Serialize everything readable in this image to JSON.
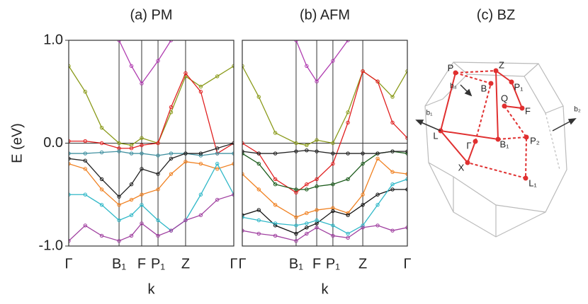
{
  "chart_data": [
    {
      "type": "line",
      "title": "(a) PM",
      "xlabel": "k",
      "ylabel": "E (eV)",
      "x": [
        0,
        0.1,
        0.2,
        0.305,
        0.38,
        0.442,
        0.541,
        0.62,
        0.708,
        0.8,
        0.9,
        1
      ],
      "xlim": [
        0,
        1
      ],
      "ylim": [
        -1,
        1
      ],
      "xticks": [
        {
          "value": 0,
          "label": "Γ"
        },
        {
          "value": 0.305,
          "label": "B₁"
        },
        {
          "value": 0.442,
          "label": "F"
        },
        {
          "value": 0.541,
          "label": "P₁"
        },
        {
          "value": 0.708,
          "label": "Z"
        },
        {
          "value": 1,
          "label": "Γ"
        }
      ],
      "yticks": [
        {
          "value": 1,
          "label": "1.0"
        },
        {
          "value": 0,
          "label": "0.0"
        },
        {
          "value": -1,
          "label": "-1.0"
        }
      ],
      "grid": true,
      "series": [
        {
          "color": "#b03cb0",
          "values": [
            null,
            null,
            null,
            1.0,
            0.75,
            0.58,
            0.8,
            1.0,
            null,
            null,
            null,
            null
          ]
        },
        {
          "color": "#8a9a1a",
          "values": [
            0.75,
            0.5,
            0.15,
            0.0,
            -0.02,
            0.05,
            0.0,
            0.3,
            0.65,
            0.55,
            0.65,
            0.75
          ]
        },
        {
          "color": "#e02020",
          "values": [
            0.02,
            0.02,
            0.0,
            -0.05,
            -0.05,
            -0.02,
            0.0,
            0.35,
            0.68,
            0.5,
            -0.1,
            0.0
          ]
        },
        {
          "color": "#4090a0",
          "values": [
            -0.1,
            -0.1,
            -0.09,
            -0.08,
            -0.1,
            -0.1,
            -0.12,
            -0.1,
            -0.1,
            -0.12,
            -0.1,
            -0.1
          ]
        },
        {
          "color": "#222222",
          "values": [
            -0.15,
            -0.17,
            -0.35,
            -0.52,
            -0.4,
            -0.25,
            -0.3,
            -0.15,
            -0.1,
            -0.1,
            -0.05,
            0.0
          ]
        },
        {
          "color": "#f08020",
          "values": [
            -0.2,
            -0.25,
            -0.45,
            -0.6,
            -0.55,
            -0.5,
            -0.45,
            -0.3,
            -0.18,
            -0.2,
            -0.25,
            -0.2
          ]
        },
        {
          "color": "#30b8c8",
          "values": [
            -0.5,
            -0.5,
            -0.6,
            -0.75,
            -0.7,
            -0.6,
            -0.75,
            -0.85,
            -0.75,
            -0.5,
            -0.2,
            -0.5
          ]
        },
        {
          "color": "#a040a0",
          "values": [
            -0.95,
            -0.8,
            -0.9,
            -0.95,
            -0.9,
            -0.78,
            -0.9,
            -0.85,
            -0.75,
            -0.7,
            -0.55,
            -0.5
          ]
        }
      ]
    },
    {
      "type": "line",
      "title": "(b) AFM",
      "xlabel": "k",
      "x": [
        0,
        0.1,
        0.2,
        0.326,
        0.39,
        0.451,
        0.549,
        0.64,
        0.73,
        0.82,
        0.91,
        1
      ],
      "xlim": [
        0,
        1
      ],
      "ylim": [
        -1,
        1
      ],
      "xticks": [
        {
          "value": 0,
          "label": "Γ"
        },
        {
          "value": 0.326,
          "label": "B₁"
        },
        {
          "value": 0.451,
          "label": "F"
        },
        {
          "value": 0.549,
          "label": "P₁"
        },
        {
          "value": 0.73,
          "label": "Z"
        },
        {
          "value": 1,
          "label": "Γ"
        }
      ],
      "grid": true,
      "series": [
        {
          "color": "#b03cb0",
          "values": [
            null,
            null,
            null,
            1.0,
            0.75,
            0.6,
            0.8,
            1.0,
            null,
            null,
            null,
            null
          ]
        },
        {
          "color": "#8a9a1a",
          "values": [
            0.75,
            0.45,
            0.1,
            0.0,
            -0.02,
            0.03,
            0.0,
            0.3,
            0.7,
            0.6,
            0.45,
            0.7
          ]
        },
        {
          "color": "#e02020",
          "values": [
            0.0,
            -0.1,
            -0.35,
            -0.48,
            -0.4,
            -0.35,
            -0.2,
            0.2,
            0.7,
            0.6,
            0.2,
            0.05
          ]
        },
        {
          "color": "#1a5a1a",
          "values": [
            -0.1,
            -0.2,
            -0.4,
            -0.45,
            -0.45,
            -0.42,
            -0.4,
            -0.35,
            -0.2,
            -0.1,
            -0.08,
            -0.1
          ]
        },
        {
          "color": "#222222",
          "values": [
            -0.08,
            -0.1,
            -0.1,
            -0.08,
            -0.07,
            -0.08,
            -0.1,
            -0.1,
            -0.1,
            -0.1,
            -0.08,
            -0.08
          ]
        },
        {
          "color": "#f08020",
          "values": [
            -0.3,
            -0.45,
            -0.6,
            -0.72,
            -0.68,
            -0.65,
            -0.63,
            -0.68,
            -0.5,
            -0.15,
            -0.28,
            -0.3
          ]
        },
        {
          "color": "#111111",
          "values": [
            -0.7,
            -0.65,
            -0.8,
            -0.88,
            -0.82,
            -0.78,
            -0.66,
            -0.7,
            -0.6,
            -0.5,
            -0.45,
            -0.45
          ]
        },
        {
          "color": "#30b8c8",
          "values": [
            -0.72,
            -0.75,
            -0.78,
            -0.8,
            -0.78,
            -0.75,
            -0.8,
            -0.88,
            -0.8,
            -0.6,
            -0.4,
            -0.35
          ]
        },
        {
          "color": "#a040a0",
          "values": [
            -0.85,
            -0.88,
            -0.9,
            -0.95,
            -0.88,
            -0.82,
            -0.9,
            -0.92,
            -0.82,
            -0.8,
            -0.85,
            -0.82
          ]
        }
      ]
    }
  ],
  "bz": {
    "title": "(c) BZ",
    "labels": [
      "P",
      "Z",
      "B",
      "P₁",
      "Q",
      "F",
      "L",
      "Γ",
      "B₁",
      "P₂",
      "X",
      "L₁",
      "b₃",
      "b₁",
      "b₂"
    ]
  }
}
